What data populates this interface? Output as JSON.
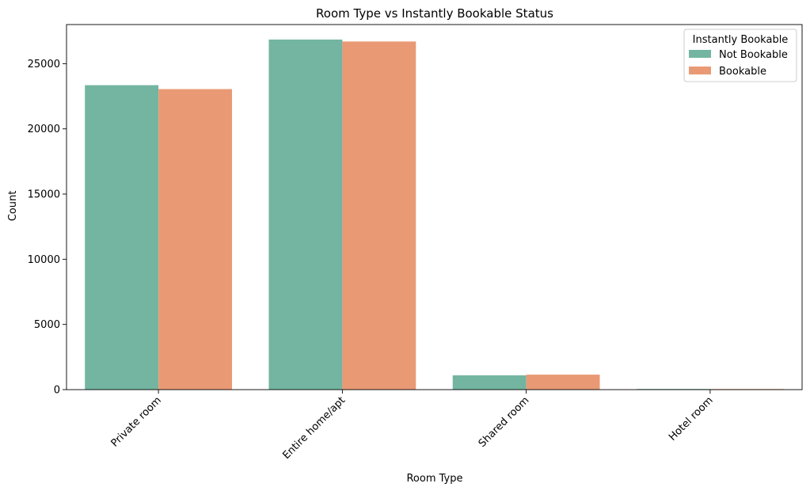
{
  "chart_data": {
    "type": "bar",
    "title": "Room Type vs Instantly Bookable Status",
    "xlabel": "Room Type",
    "ylabel": "Count",
    "categories": [
      "Private room",
      "Entire home/apt",
      "Shared room",
      "Hotel room"
    ],
    "series": [
      {
        "name": "Not Bookable",
        "values": [
          23350,
          26850,
          1100,
          50
        ],
        "color": "#73b5a0"
      },
      {
        "name": "Bookable",
        "values": [
          23050,
          26700,
          1150,
          45
        ],
        "color": "#e99a75"
      }
    ],
    "ylim": [
      0,
      28000
    ],
    "yticks": [
      0,
      5000,
      10000,
      15000,
      20000,
      25000
    ],
    "legend": {
      "title": "Instantly Bookable",
      "placement": "top-right"
    },
    "grid": false
  }
}
